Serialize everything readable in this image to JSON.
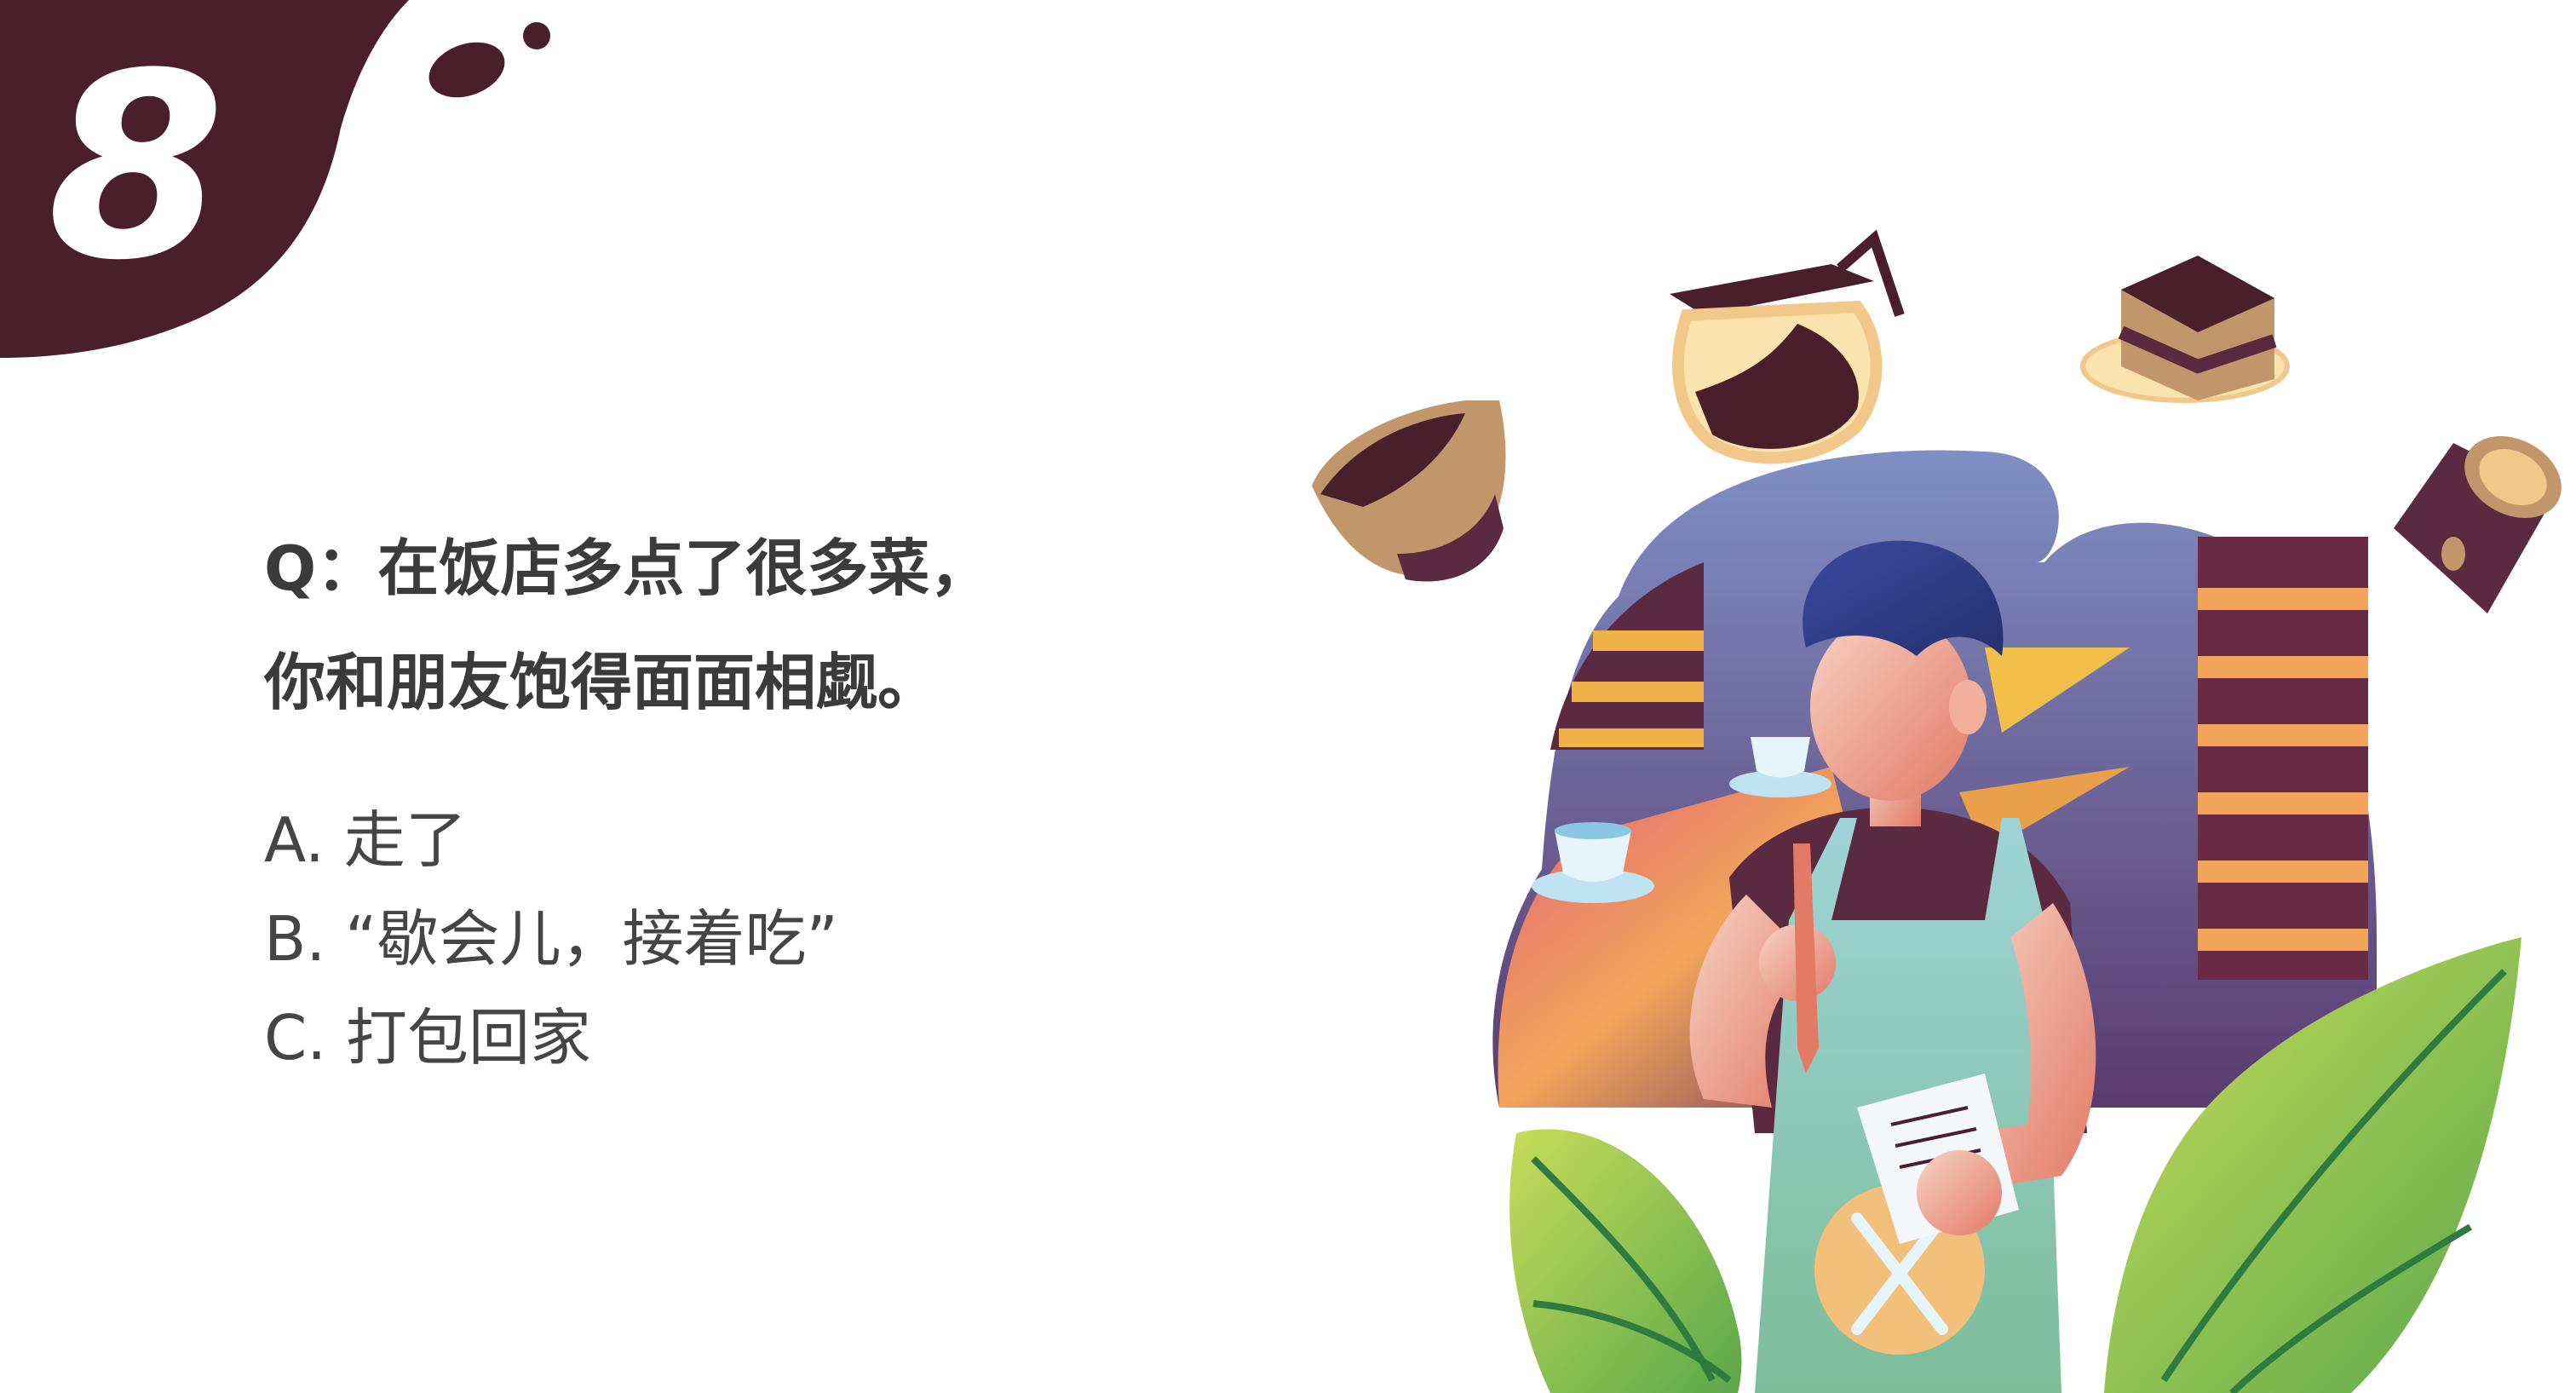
{
  "badge": {
    "number": "8",
    "color": "#4a1f2c"
  },
  "question": {
    "line1": "Q：在饭店多点了很多菜，",
    "line2": "你和朋友饱得面面相觑。"
  },
  "options": [
    {
      "label": "A. 走了"
    },
    {
      "label": "B. “歇会儿，接着吃”"
    },
    {
      "label": "C. 打包回家"
    }
  ],
  "illustration": {
    "icons": [
      "coffee-bowl-icon",
      "coffee-pot-icon",
      "cake-slice-icon",
      "coffee-cup-icon",
      "waiter-figure",
      "leaf-icon"
    ],
    "colors": {
      "dark_brown": "#4a1f2c",
      "navy": "#3b4a9a",
      "apron": "#8cc6c3",
      "orange": "#f2a55a",
      "leaf": "#9ccc4a"
    }
  }
}
